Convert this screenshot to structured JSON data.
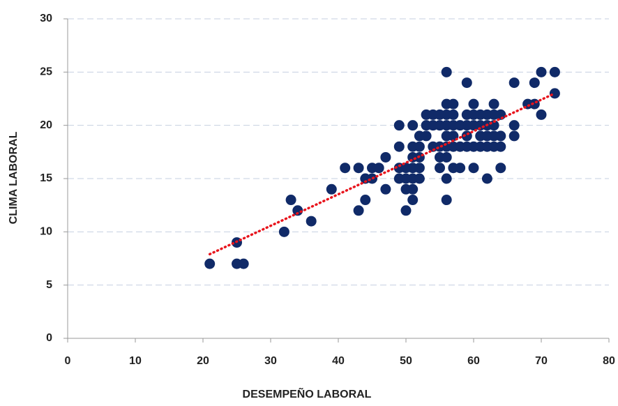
{
  "chart_data": {
    "type": "scatter",
    "x_label": "DESEMPEÑO LABORAL",
    "y_label": "CLIMA LABORAL",
    "xlim": [
      0,
      80
    ],
    "xticks": [
      0,
      10,
      20,
      30,
      40,
      50,
      60,
      70,
      80
    ],
    "ylim": [
      0,
      30
    ],
    "yticks": [
      0,
      5,
      10,
      15,
      20,
      25,
      30
    ],
    "grid": true,
    "color": "#102a68",
    "x": [
      21,
      25,
      25,
      26,
      32,
      33,
      34,
      36,
      39,
      41,
      43,
      43,
      44,
      44,
      45,
      45,
      46,
      47,
      47,
      49,
      49,
      49,
      49,
      50,
      50,
      50,
      50,
      51,
      51,
      51,
      51,
      51,
      51,
      51,
      52,
      52,
      52,
      52,
      52,
      53,
      53,
      53,
      54,
      54,
      54,
      55,
      55,
      55,
      55,
      55,
      56,
      56,
      56,
      56,
      56,
      56,
      56,
      56,
      56,
      57,
      57,
      57,
      57,
      57,
      57,
      58,
      58,
      58,
      59,
      59,
      59,
      59,
      59,
      60,
      60,
      60,
      60,
      60,
      61,
      61,
      61,
      61,
      62,
      62,
      62,
      62,
      62,
      63,
      63,
      63,
      63,
      63,
      64,
      64,
      64,
      64,
      66,
      66,
      66,
      68,
      69,
      69,
      70,
      70,
      72,
      72
    ],
    "values": [
      7,
      9,
      7,
      7,
      10,
      13,
      12,
      11,
      14,
      16,
      16,
      12,
      15,
      13,
      16,
      15,
      16,
      17,
      14,
      20,
      18,
      16,
      15,
      16,
      15,
      14,
      12,
      20,
      18,
      17,
      16,
      15,
      14,
      13,
      18,
      17,
      16,
      15,
      19,
      19,
      20,
      21,
      21,
      20,
      18,
      21,
      20,
      18,
      17,
      16,
      25,
      22,
      21,
      20,
      19,
      18,
      17,
      15,
      13,
      22,
      21,
      20,
      19,
      18,
      16,
      20,
      18,
      16,
      24,
      21,
      20,
      19,
      18,
      22,
      21,
      20,
      18,
      16,
      21,
      20,
      19,
      18,
      21,
      20,
      19,
      18,
      15,
      22,
      21,
      20,
      19,
      18,
      21,
      19,
      18,
      16,
      24,
      20,
      19,
      22,
      24,
      22,
      25,
      21,
      25,
      23
    ],
    "trendline": {
      "color": "#e8141c",
      "x": [
        21,
        72
      ],
      "values": [
        7.9,
        23
      ]
    }
  }
}
